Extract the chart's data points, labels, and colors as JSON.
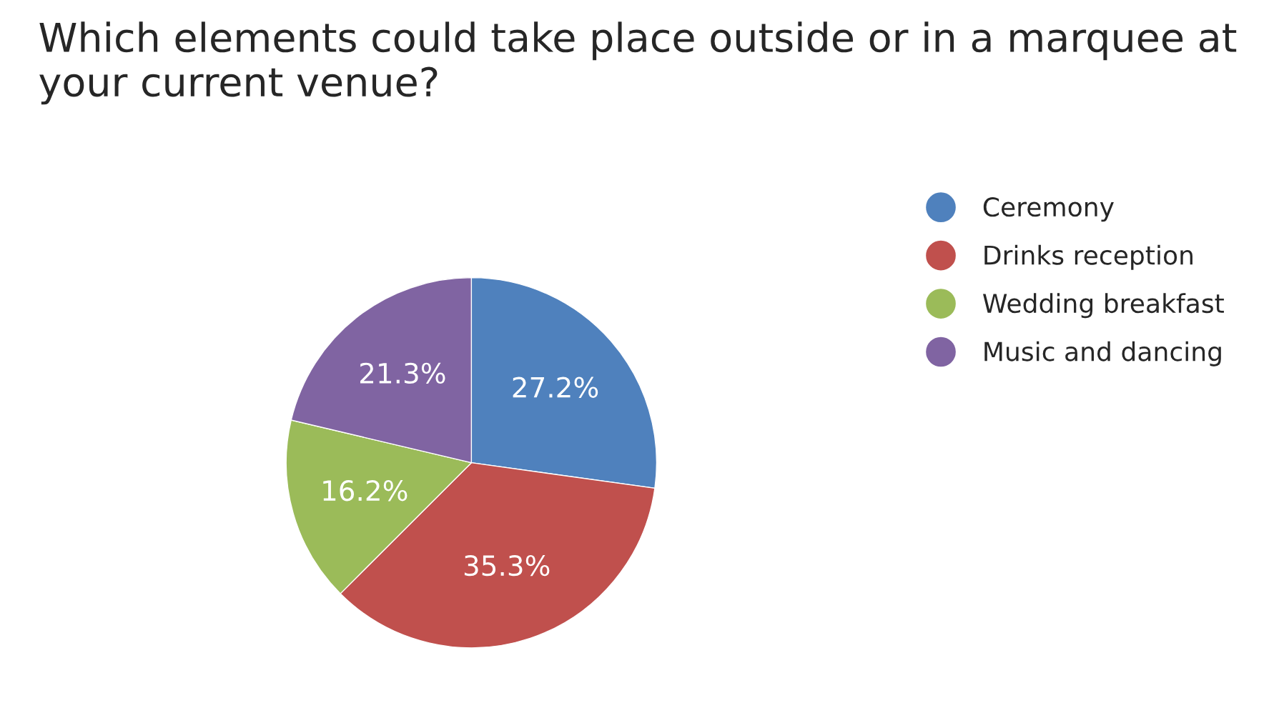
{
  "chart_data": {
    "type": "pie",
    "title": "Which elements could take place outside or in a marquee at your current venue?",
    "categories": [
      "Ceremony",
      "Drinks reception",
      "Wedding breakfast",
      "Music and dancing"
    ],
    "values": [
      27.2,
      35.3,
      16.2,
      21.3
    ],
    "value_labels": [
      "27.2%",
      "35.3%",
      "16.2%",
      "21.3%"
    ],
    "colors": [
      "#4f81bd",
      "#c0504d",
      "#9bbb59",
      "#8064a2"
    ],
    "legend": "right"
  }
}
